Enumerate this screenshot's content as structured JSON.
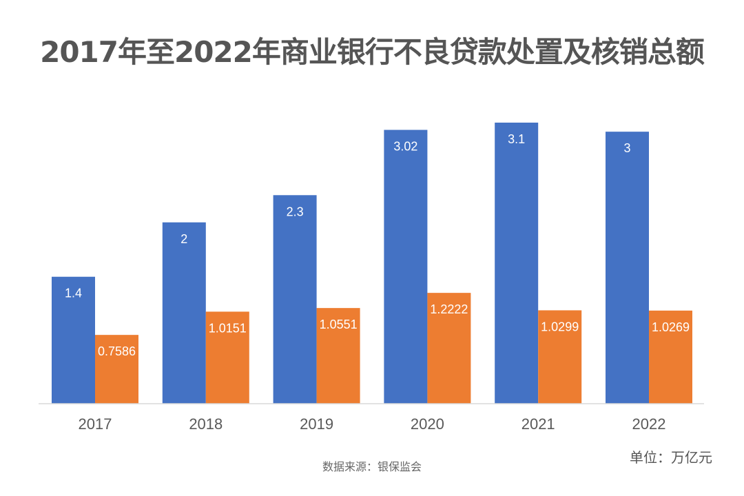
{
  "title": "2017年至2022年商业银行不良贷款处置及核销总额",
  "unit": "单位：万亿元",
  "source": "数据来源：银保监会",
  "chart_data": {
    "type": "bar",
    "title": "2017年至2022年商业银行不良贷款处置及核销总额",
    "xlabel": "",
    "ylabel": "",
    "categories": [
      "2017",
      "2018",
      "2019",
      "2020",
      "2021",
      "2022"
    ],
    "series": [
      {
        "name": "series-1",
        "color": "#4472c4",
        "values": [
          1.4,
          2,
          2.3,
          3.02,
          3.1,
          3
        ],
        "labels": [
          "1.4",
          "2",
          "2.3",
          "3.02",
          "3.1",
          "3"
        ]
      },
      {
        "name": "series-2",
        "color": "#ed7d31",
        "values": [
          0.7586,
          1.0151,
          1.0551,
          1.2222,
          1.0299,
          1.0269
        ],
        "labels": [
          "0.7586",
          "1.0151",
          "1.0551",
          "1.2222",
          "1.0299",
          "1.0269"
        ]
      }
    ],
    "ylim": [
      0,
      3.1
    ],
    "grid": false,
    "legend": "none"
  }
}
